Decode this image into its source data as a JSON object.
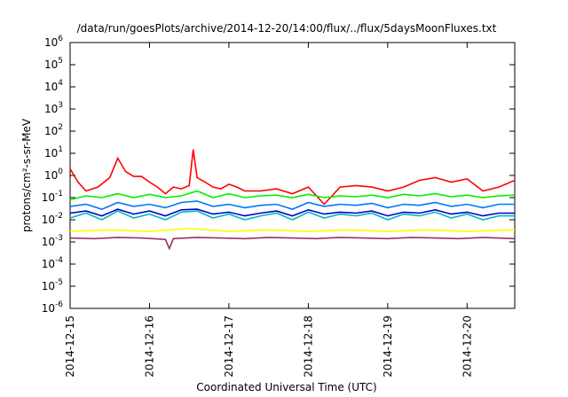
{
  "chart_data": {
    "type": "line",
    "title": "/data/run/goesPlots/archive/2014-12-20/14:00/flux/../flux/5daysMoonFluxes.txt",
    "xlabel": "Coordinated Universal Time (UTC)",
    "ylabel": "protons/cm²-s-sr-MeV",
    "yscale": "log",
    "ylim": [
      1e-06,
      1000000.0
    ],
    "xlim_days": [
      0,
      5.6
    ],
    "grid": false,
    "legend": "none",
    "x_tick_labels": [
      "2014-12-15",
      "2014-12-16",
      "2014-12-17",
      "2014-12-18",
      "2014-12-19",
      "2014-12-20"
    ],
    "y_tick_labels": [
      {
        "base": "10",
        "exp": "-6"
      },
      {
        "base": "10",
        "exp": "-5"
      },
      {
        "base": "10",
        "exp": "-4"
      },
      {
        "base": "10",
        "exp": "-3"
      },
      {
        "base": "10",
        "exp": "-2"
      },
      {
        "base": "10",
        "exp": "-1"
      },
      {
        "base": "10",
        "exp": "0"
      },
      {
        "base": "10",
        "exp": "1"
      },
      {
        "base": "10",
        "exp": "2"
      },
      {
        "base": "10",
        "exp": "3"
      },
      {
        "base": "10",
        "exp": "4"
      },
      {
        "base": "10",
        "exp": "5"
      },
      {
        "base": "10",
        "exp": "6"
      }
    ],
    "series": [
      {
        "color": "#ff0000",
        "x": [
          0,
          0.1,
          0.2,
          0.35,
          0.5,
          0.6,
          0.7,
          0.8,
          0.9,
          1.0,
          1.1,
          1.2,
          1.3,
          1.4,
          1.5,
          1.55,
          1.6,
          1.7,
          1.8,
          1.9,
          2.0,
          2.1,
          2.2,
          2.4,
          2.6,
          2.8,
          3.0,
          3.2,
          3.4,
          3.6,
          3.8,
          4.0,
          4.2,
          4.4,
          4.6,
          4.8,
          5.0,
          5.2,
          5.4,
          5.6
        ],
        "y": [
          2,
          0.5,
          0.2,
          0.3,
          0.8,
          6,
          1.5,
          0.9,
          0.9,
          0.5,
          0.3,
          0.15,
          0.3,
          0.25,
          0.35,
          15,
          0.8,
          0.5,
          0.3,
          0.25,
          0.4,
          0.3,
          0.2,
          0.2,
          0.25,
          0.15,
          0.3,
          0.05,
          0.3,
          0.35,
          0.3,
          0.2,
          0.3,
          0.6,
          0.8,
          0.5,
          0.7,
          0.2,
          0.3,
          0.6
        ]
      },
      {
        "color": "#00ee00",
        "x": [
          0,
          0.2,
          0.4,
          0.6,
          0.8,
          1.0,
          1.2,
          1.4,
          1.6,
          1.8,
          2.0,
          2.2,
          2.4,
          2.6,
          2.8,
          3.0,
          3.2,
          3.4,
          3.6,
          3.8,
          4.0,
          4.2,
          4.4,
          4.6,
          4.8,
          5.0,
          5.2,
          5.4,
          5.6
        ],
        "y": [
          0.08,
          0.12,
          0.1,
          0.15,
          0.1,
          0.14,
          0.1,
          0.12,
          0.2,
          0.1,
          0.15,
          0.1,
          0.12,
          0.13,
          0.1,
          0.14,
          0.1,
          0.12,
          0.11,
          0.13,
          0.1,
          0.14,
          0.12,
          0.15,
          0.11,
          0.13,
          0.1,
          0.12,
          0.13
        ]
      },
      {
        "color": "#0077ff",
        "x": [
          0,
          0.2,
          0.4,
          0.6,
          0.8,
          1.0,
          1.2,
          1.4,
          1.6,
          1.8,
          2.0,
          2.2,
          2.4,
          2.6,
          2.8,
          3.0,
          3.2,
          3.4,
          3.6,
          3.8,
          4.0,
          4.2,
          4.4,
          4.6,
          4.8,
          5.0,
          5.2,
          5.4,
          5.6
        ],
        "y": [
          0.04,
          0.05,
          0.03,
          0.06,
          0.04,
          0.05,
          0.035,
          0.06,
          0.07,
          0.04,
          0.05,
          0.035,
          0.045,
          0.05,
          0.03,
          0.06,
          0.04,
          0.05,
          0.045,
          0.055,
          0.035,
          0.05,
          0.045,
          0.06,
          0.04,
          0.05,
          0.035,
          0.05,
          0.05
        ]
      },
      {
        "color": "#00bbbb",
        "x": [
          0,
          0.2,
          0.4,
          0.6,
          0.8,
          1.0,
          1.2,
          1.4,
          1.6,
          1.8,
          2.0,
          2.2,
          2.4,
          2.6,
          2.8,
          3.0,
          3.2,
          3.4,
          3.6,
          3.8,
          4.0,
          4.2,
          4.4,
          4.6,
          4.8,
          5.0,
          5.2,
          5.4,
          5.6
        ],
        "y": [
          0.012,
          0.02,
          0.01,
          0.025,
          0.012,
          0.018,
          0.01,
          0.022,
          0.025,
          0.012,
          0.018,
          0.01,
          0.015,
          0.02,
          0.01,
          0.022,
          0.012,
          0.018,
          0.015,
          0.02,
          0.01,
          0.018,
          0.015,
          0.022,
          0.012,
          0.018,
          0.01,
          0.015,
          0.015
        ]
      },
      {
        "color": "#0000cc",
        "x": [
          0,
          0.2,
          0.4,
          0.6,
          0.8,
          1.0,
          1.2,
          1.4,
          1.6,
          1.8,
          2.0,
          2.2,
          2.4,
          2.6,
          2.8,
          3.0,
          3.2,
          3.4,
          3.6,
          3.8,
          4.0,
          4.2,
          4.4,
          4.6,
          4.8,
          5.0,
          5.2,
          5.4,
          5.6
        ],
        "y": [
          0.02,
          0.025,
          0.015,
          0.03,
          0.018,
          0.025,
          0.015,
          0.028,
          0.03,
          0.018,
          0.022,
          0.015,
          0.02,
          0.025,
          0.015,
          0.028,
          0.018,
          0.022,
          0.02,
          0.025,
          0.015,
          0.022,
          0.02,
          0.028,
          0.018,
          0.022,
          0.015,
          0.02,
          0.02
        ]
      },
      {
        "color": "#ffff00",
        "x": [
          0,
          0.5,
          1.0,
          1.5,
          2.0,
          2.5,
          3.0,
          3.5,
          4.0,
          4.5,
          5.0,
          5.6
        ],
        "y": [
          0.003,
          0.0035,
          0.003,
          0.004,
          0.003,
          0.0035,
          0.003,
          0.0035,
          0.003,
          0.0035,
          0.003,
          0.0035
        ]
      },
      {
        "color": "#993366",
        "x": [
          0,
          0.3,
          0.6,
          0.9,
          1.2,
          1.25,
          1.3,
          1.6,
          1.9,
          2.2,
          2.5,
          2.8,
          3.1,
          3.4,
          3.7,
          4.0,
          4.3,
          4.6,
          4.9,
          5.2,
          5.6
        ],
        "y": [
          0.0015,
          0.0014,
          0.0016,
          0.0015,
          0.0013,
          0.0005,
          0.0014,
          0.0016,
          0.0015,
          0.0014,
          0.0016,
          0.0015,
          0.0014,
          0.0016,
          0.0015,
          0.0014,
          0.0016,
          0.0015,
          0.0014,
          0.0016,
          0.0014
        ]
      }
    ]
  }
}
